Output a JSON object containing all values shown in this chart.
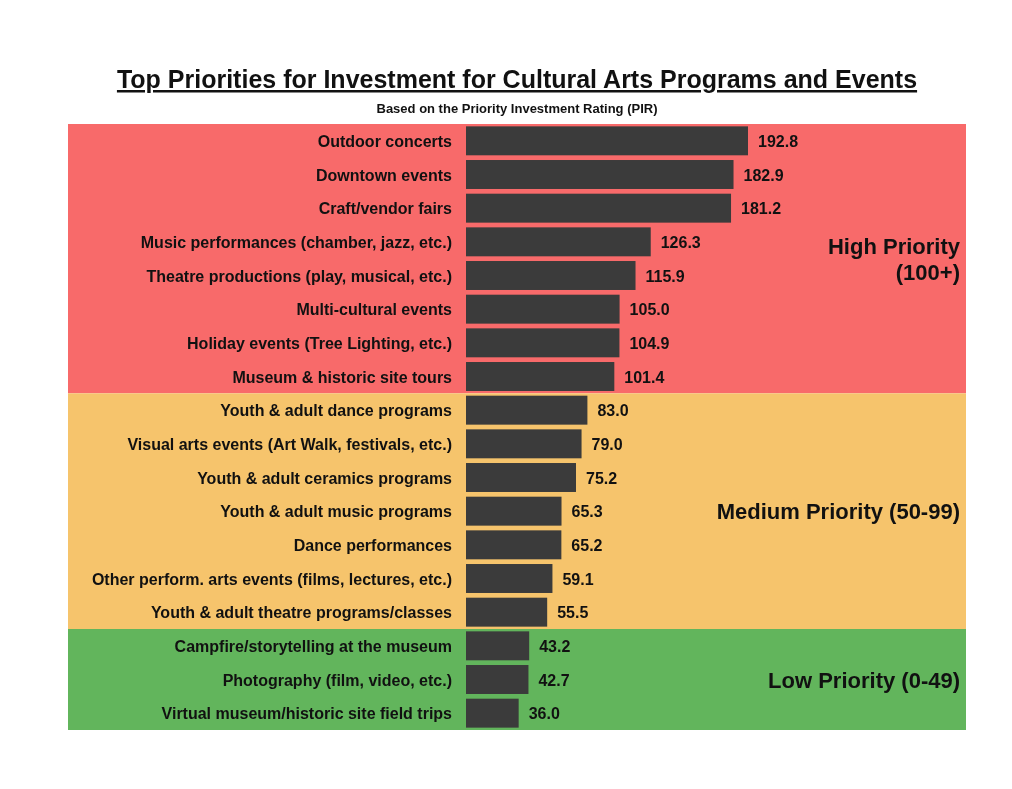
{
  "chart_data": {
    "type": "bar",
    "orientation": "horizontal",
    "title": "Top Priorities for Investment for Cultural Arts Programs and Events",
    "subtitle": "Based on the Priority Investment Rating (PIR)",
    "categories": [
      "Outdoor concerts",
      "Downtown events",
      "Craft/vendor fairs",
      "Music performances (chamber, jazz, etc.)",
      "Theatre productions (play, musical, etc.)",
      "Multi-cultural events",
      "Holiday events (Tree Lighting, etc.)",
      "Museum & historic site tours",
      "Youth & adult dance programs",
      "Visual arts events (Art Walk, festivals, etc.)",
      "Youth & adult ceramics programs",
      "Youth & adult music programs",
      "Dance performances",
      "Other perform. arts events (films, lectures, etc.)",
      "Youth & adult theatre programs/classes",
      "Campfire/storytelling at the museum",
      "Photography (film, video, etc.)",
      "Virtual museum/historic site field trips"
    ],
    "values": [
      192.8,
      182.9,
      181.2,
      126.3,
      115.9,
      105.0,
      104.9,
      101.4,
      83.0,
      79.0,
      75.2,
      65.3,
      65.2,
      59.1,
      55.5,
      43.2,
      42.7,
      36.0
    ],
    "value_labels": [
      "192.8",
      "182.9",
      "181.2",
      "126.3",
      "115.9",
      "105.0",
      "104.9",
      "101.4",
      "83.0",
      "79.0",
      "75.2",
      "65.3",
      "65.2",
      "59.1",
      "55.5",
      "43.2",
      "42.7",
      "36.0"
    ],
    "color": "#3b3b3b",
    "bands": [
      {
        "axis": "y",
        "from": "Outdoor concerts",
        "to": "Museum & historic site tours",
        "label": "High Priority (100+)",
        "color": "#f86a6a"
      },
      {
        "axis": "y",
        "from": "Youth & adult dance programs",
        "to": "Youth & adult theatre programs/classes",
        "label": "Medium Priority (50-99)",
        "color": "#f6c46c"
      },
      {
        "axis": "y",
        "from": "Campfire/storytelling at the museum",
        "to": "Virtual museum/historic site field trips",
        "label": "Low Priority (0-49)",
        "color": "#62b55c"
      }
    ],
    "data_labels": false
  }
}
